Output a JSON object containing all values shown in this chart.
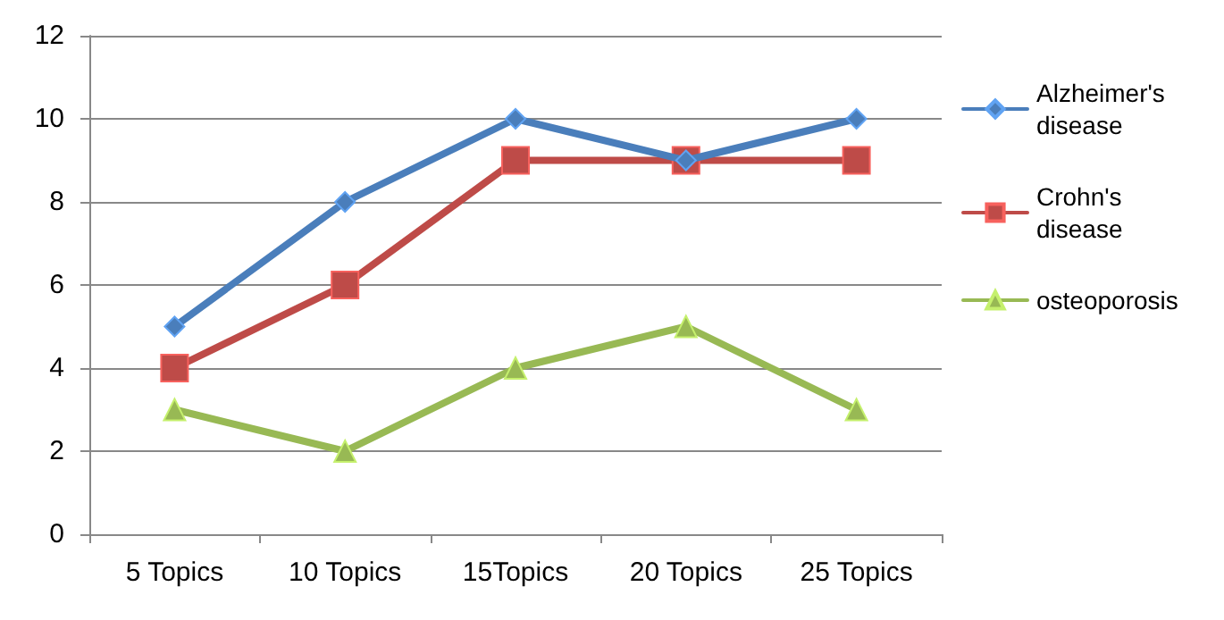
{
  "chart_data": {
    "type": "line",
    "categories": [
      "5 Topics",
      "10 Topics",
      "15Topics",
      "20 Topics",
      "25 Topics"
    ],
    "series": [
      {
        "name": "Alzheimer's disease",
        "color": "#4a7ebb",
        "marker": "diamond",
        "values": [
          5,
          8,
          10,
          9,
          10
        ]
      },
      {
        "name": "Crohn's disease",
        "color": "#be4b48",
        "marker": "square",
        "values": [
          4,
          6,
          9,
          9,
          9
        ]
      },
      {
        "name": "osteoporosis",
        "color": "#98b954",
        "marker": "triangle",
        "values": [
          3,
          2,
          4,
          5,
          3
        ]
      }
    ],
    "ylim": [
      0,
      12
    ],
    "yticks": [
      0,
      2,
      4,
      6,
      8,
      10,
      12
    ],
    "grid": "y",
    "legend": "right",
    "line_style": "solid"
  }
}
